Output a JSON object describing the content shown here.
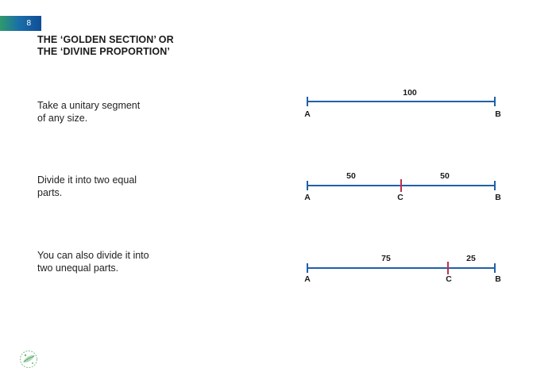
{
  "page": {
    "number": "8",
    "title_line1": "THE ‘GOLDEN SECTION’ OR",
    "title_line2": "THE ‘DIVINE PROPORTION’"
  },
  "paragraphs": [
    {
      "line1": "Take a unitary segment",
      "line2": "of any size."
    },
    {
      "line1": "Divide it into two equal",
      "line2": "parts."
    },
    {
      "line1": "You can also divide it into",
      "line2": "two unequal parts."
    }
  ],
  "segments": [
    {
      "total": 100,
      "parts": [
        {
          "label": "100"
        }
      ],
      "end_a": "A",
      "end_b": "B"
    },
    {
      "total": 100,
      "split": 50,
      "parts": [
        {
          "label": "50"
        },
        {
          "label": "50"
        }
      ],
      "end_a": "A",
      "mid": "C",
      "end_b": "B"
    },
    {
      "total": 100,
      "split": 75,
      "parts": [
        {
          "label": "75"
        },
        {
          "label": "25"
        }
      ],
      "end_a": "A",
      "mid": "C",
      "end_b": "B"
    }
  ],
  "colors": {
    "segment": "#2060a8",
    "divider": "#c0304a",
    "tab_start": "#2f9a6c",
    "tab_end": "#0f4d99"
  },
  "logo_icon": "leaf-circle-logo-icon"
}
